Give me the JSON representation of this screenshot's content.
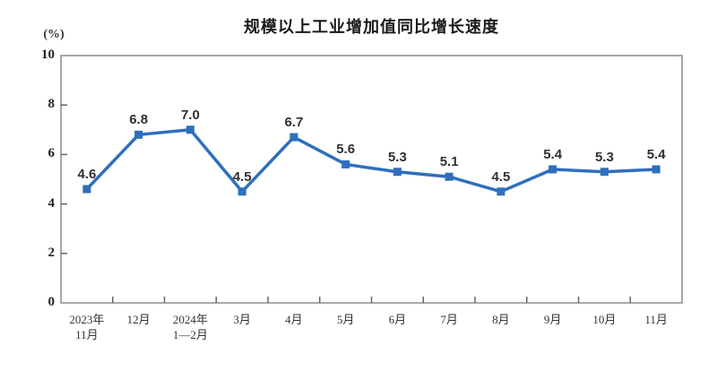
{
  "title": "规模以上工业增加值同比增长速度",
  "chart_data": {
    "type": "line",
    "title": "规模以上工业增加值同比增长速度",
    "categories": [
      "2023年\n11月",
      "12月",
      "2024年\n1—2月",
      "3月",
      "4月",
      "5月",
      "6月",
      "7月",
      "8月",
      "9月",
      "10月",
      "11月"
    ],
    "values": [
      4.6,
      6.8,
      7.0,
      4.5,
      6.7,
      5.6,
      5.3,
      5.1,
      4.5,
      5.4,
      5.3,
      5.4
    ],
    "point_labels": [
      "4.6",
      "6.8",
      "7.0",
      "4.5",
      "6.7",
      "5.6",
      "5.3",
      "5.1",
      "4.5",
      "5.4",
      "5.3",
      "5.4"
    ],
    "xlabel": "",
    "ylabel": "(%)",
    "ylim": [
      0,
      10
    ],
    "yticks": [
      0,
      2,
      4,
      6,
      8,
      10
    ],
    "grid": false,
    "legend": "none",
    "line_color": "#2E6FBE",
    "marker": "square",
    "marker_color": "#2E6FBE",
    "value_label_color": "#303030",
    "axis_box_color": "#8C8C8C",
    "tick_color": "#666666"
  }
}
